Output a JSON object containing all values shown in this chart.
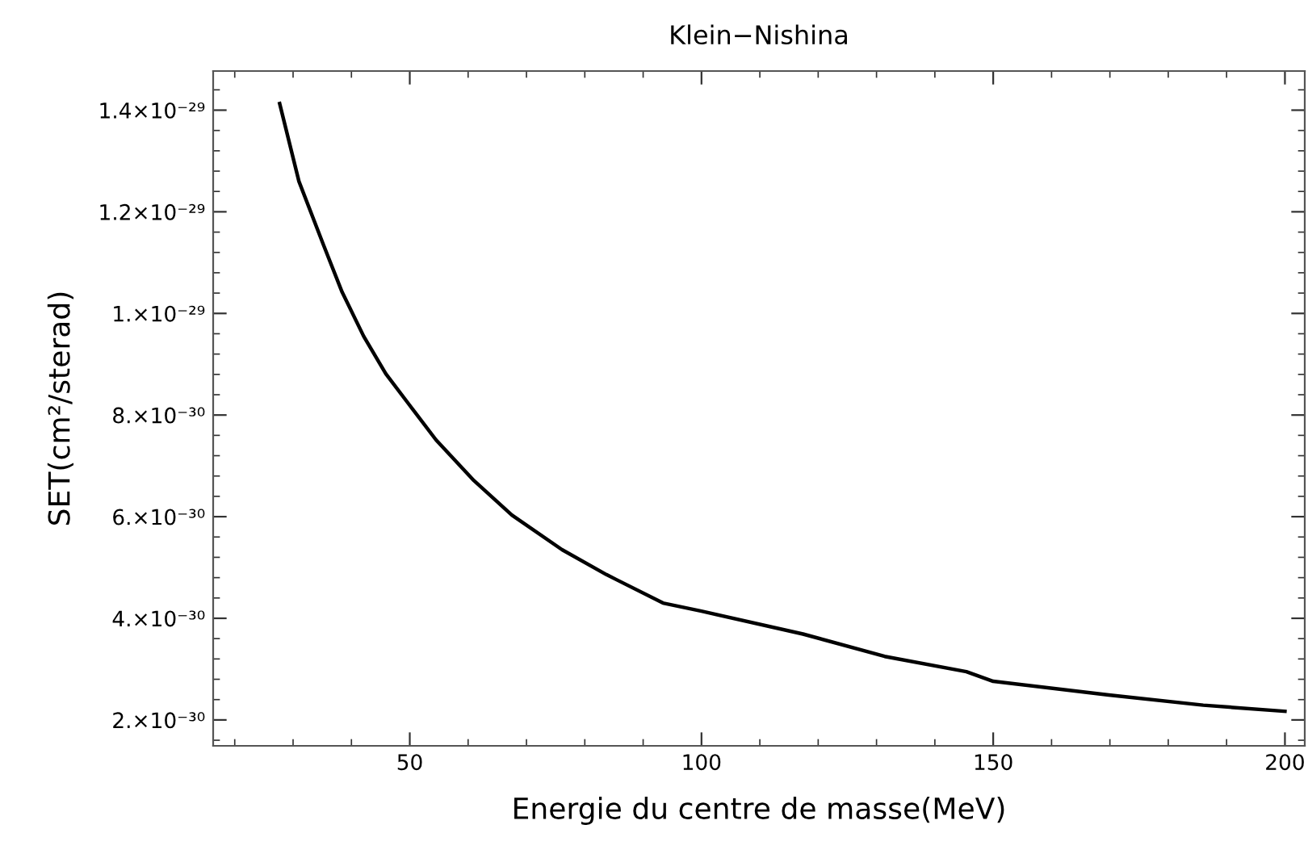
{
  "chart_data": {
    "type": "line",
    "title": "Klein−Nishina",
    "xlabel": "Energie du centre de masse(MeV)",
    "ylabel": "SET(cm²/sterad)",
    "x": [
      27.7,
      31,
      35.2,
      38.4,
      42.1,
      45.9,
      50,
      54.5,
      61.0,
      67.5,
      76.1,
      83.7,
      93.4,
      100,
      117.4,
      131.4,
      145.4,
      150,
      169.8,
      186,
      200
    ],
    "series": [
      {
        "color": "#000000",
        "values": [
          1.413e-29,
          1.26e-29,
          1.135e-29,
          1.042e-29,
          9.55e-30,
          8.81e-30,
          8.19e-30,
          7.51e-30,
          6.71e-30,
          6.03e-30,
          5.35e-30,
          4.86e-30,
          4.3e-30,
          4.14e-30,
          3.69e-30,
          3.25e-30,
          2.95e-30,
          2.76e-30,
          2.49e-30,
          2.29e-30,
          2.17e-30
        ]
      }
    ],
    "xlim": [
      16.3,
      203.4
    ],
    "ylim": [
      1.49e-30,
      1.477e-29
    ],
    "xticks": [
      50,
      100,
      150,
      200
    ],
    "yticks": [
      {
        "value": 2e-30,
        "label": "2.×10⁻³⁰"
      },
      {
        "value": 4e-30,
        "label": "4.×10⁻³⁰"
      },
      {
        "value": 6e-30,
        "label": "6.×10⁻³⁰"
      },
      {
        "value": 8e-30,
        "label": "8.×10⁻³⁰"
      },
      {
        "value": 1e-29,
        "label": "1.×10⁻²⁹"
      },
      {
        "value": 1.2e-29,
        "label": "1.2×10⁻²⁹"
      },
      {
        "value": 1.4e-29,
        "label": "1.4×10⁻²⁹"
      }
    ],
    "grid": false,
    "legend": false,
    "marker": "none",
    "line_style": "solid"
  }
}
